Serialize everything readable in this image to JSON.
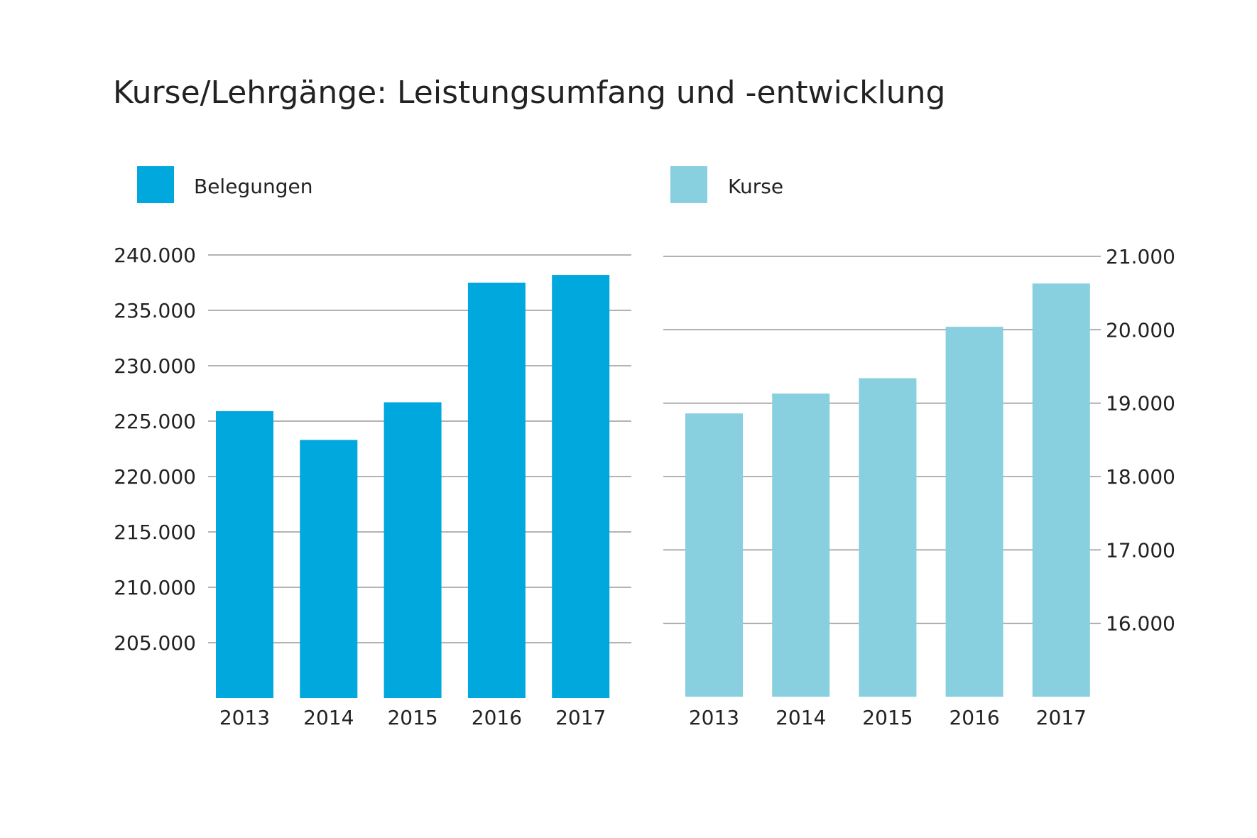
{
  "title": "Kurse/Lehrgänge: Leistungsumfang und -entwicklung",
  "legend": [
    {
      "label": "Belegungen",
      "color": "#00a8de"
    },
    {
      "label": "Kurse",
      "color": "#88cfe0"
    }
  ],
  "chart_data": [
    {
      "type": "bar",
      "title": "",
      "categories": [
        "2013",
        "2014",
        "2015",
        "2016",
        "2017"
      ],
      "series": [
        {
          "name": "Belegungen",
          "values": [
            225900,
            223300,
            226700,
            237500,
            238200
          ],
          "color": "#00a8de"
        }
      ],
      "ylim": [
        200000,
        240000
      ],
      "yticks": [
        205000,
        210000,
        215000,
        220000,
        225000,
        230000,
        235000,
        240000
      ],
      "ytick_labels": [
        "205.000",
        "210.000",
        "215.000",
        "220.000",
        "225.000",
        "230.000",
        "235.000",
        "240.000"
      ],
      "y_axis_side": "left",
      "grid": true,
      "legend_position": "top-left"
    },
    {
      "type": "bar",
      "title": "",
      "categories": [
        "2013",
        "2014",
        "2015",
        "2016",
        "2017"
      ],
      "series": [
        {
          "name": "Kurse",
          "values": [
            18860,
            19130,
            19340,
            20040,
            20630
          ],
          "color": "#88cfe0"
        }
      ],
      "ylim": [
        15000,
        21000
      ],
      "yticks": [
        16000,
        17000,
        18000,
        19000,
        20000,
        21000
      ],
      "ytick_labels": [
        "16.000",
        "17.000",
        "18.000",
        "19.000",
        "20.000",
        "21.000"
      ],
      "y_axis_side": "right",
      "grid": true,
      "legend_position": "top-right"
    }
  ]
}
